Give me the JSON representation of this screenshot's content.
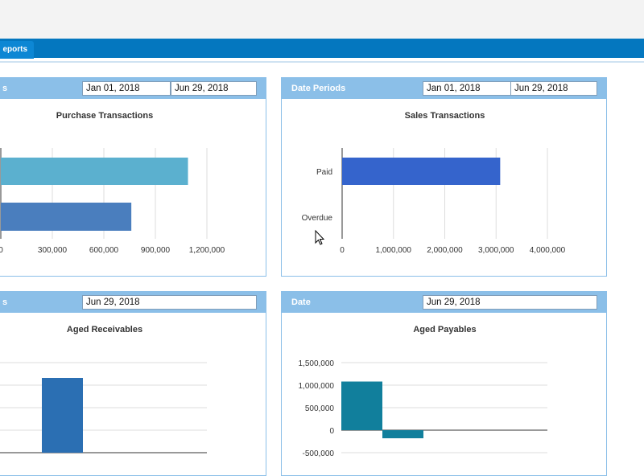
{
  "nav": {
    "tab_label": "eports"
  },
  "panels": {
    "purchase": {
      "header_title": "s",
      "date_from": "Jan 01, 2018",
      "date_to": "Jun 29, 2018",
      "chart_title": "Purchase Transactions"
    },
    "sales": {
      "header_title": "Date Periods",
      "date_from": "Jan 01, 2018",
      "date_to": "Jun 29, 2018",
      "chart_title": "Sales Transactions"
    },
    "receivables": {
      "header_title": "s",
      "date": "Jun 29, 2018",
      "chart_title": "Aged Receivables"
    },
    "payables": {
      "header_title": "Date",
      "date": "Jun 29, 2018",
      "chart_title": "Aged Payables"
    }
  },
  "chart_data": [
    {
      "type": "bar",
      "orientation": "horizontal",
      "title": "Purchase Transactions",
      "categories": [
        "",
        ""
      ],
      "values": [
        1090000,
        760000
      ],
      "colors": [
        "#5bb0cf",
        "#4a7ebe"
      ],
      "xlim": [
        0,
        1300000
      ],
      "ticks": [
        "0",
        "300,000",
        "600,000",
        "900,000",
        "1,200,000"
      ],
      "tick_values": [
        0,
        300000,
        600000,
        900000,
        1200000
      ],
      "grid": true
    },
    {
      "type": "bar",
      "orientation": "horizontal",
      "title": "Sales Transactions",
      "categories": [
        "Paid",
        "Overdue"
      ],
      "values": [
        3080000,
        0
      ],
      "colors": [
        "#3564cc",
        "#3564cc"
      ],
      "xlim": [
        0,
        4000000
      ],
      "ticks": [
        "0",
        "1,000,000",
        "2,000,000",
        "3,000,000",
        "4,000,000"
      ],
      "tick_values": [
        0,
        1000000,
        2000000,
        3000000,
        4000000
      ],
      "grid": true
    },
    {
      "type": "bar",
      "title": "Aged Receivables",
      "values": [
        0,
        1000000,
        0,
        0,
        0
      ],
      "colors": [
        "#2b6fb3"
      ],
      "grid": true
    },
    {
      "type": "bar",
      "title": "Aged Payables",
      "values": [
        1080000,
        -180000,
        0,
        0,
        0
      ],
      "colors": [
        "#117f9c"
      ],
      "ylim": [
        -500000,
        1500000
      ],
      "ticks": [
        "1,500,000",
        "1,000,000",
        "500,000",
        "0",
        "-500,000"
      ],
      "tick_values": [
        1500000,
        1000000,
        500000,
        0,
        -500000
      ],
      "grid": true
    }
  ]
}
